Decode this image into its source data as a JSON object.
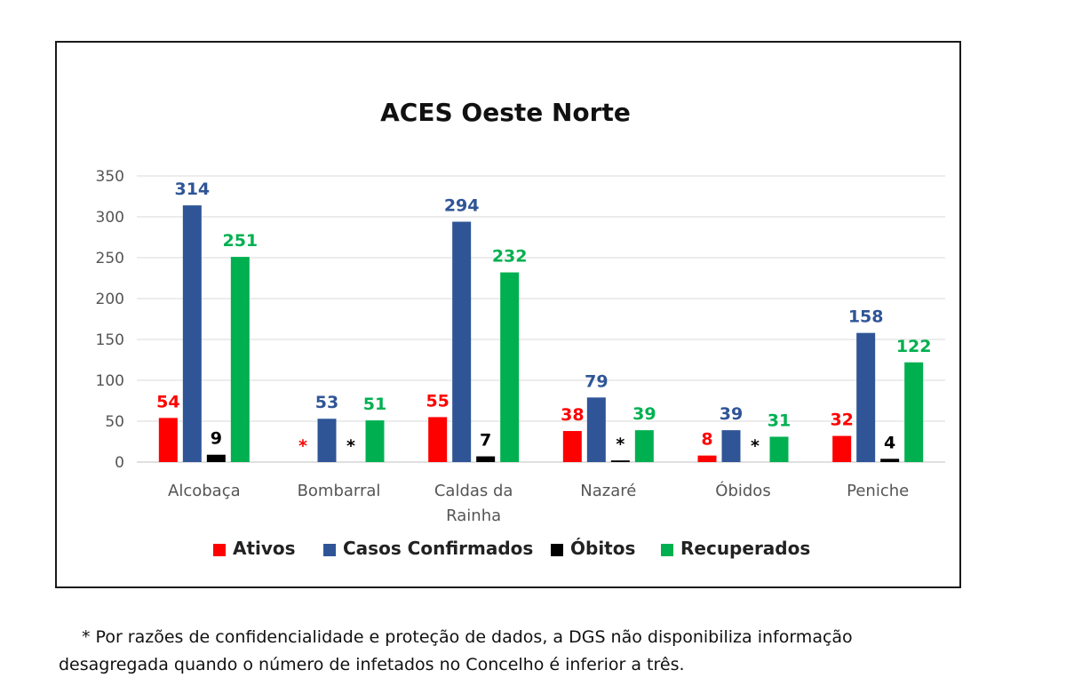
{
  "chart_data": {
    "type": "bar",
    "title": "ACES Oeste Norte",
    "categories": [
      [
        "Alcobaça"
      ],
      [
        "Bombarral"
      ],
      [
        "Caldas da",
        "Rainha"
      ],
      [
        "Nazaré"
      ],
      [
        "Óbidos"
      ],
      [
        "Peniche"
      ]
    ],
    "ylim": [
      0,
      350
    ],
    "yticks": [
      0,
      50,
      100,
      150,
      200,
      250,
      300,
      350
    ],
    "grid": true,
    "legend_position": "bottom",
    "series": [
      {
        "name": "Ativos",
        "color": "#ff0000",
        "values": [
          54,
          0,
          55,
          38,
          8,
          32
        ],
        "labels": [
          "54",
          "*",
          "55",
          "38",
          "8",
          "32"
        ]
      },
      {
        "name": "Casos Confirmados",
        "color": "#2f5597",
        "values": [
          314,
          53,
          294,
          79,
          39,
          158
        ],
        "labels": [
          "314",
          "53",
          "294",
          "79",
          "39",
          "158"
        ]
      },
      {
        "name": "Óbitos",
        "color": "#000000",
        "values": [
          9,
          0,
          7,
          2,
          0,
          4
        ],
        "labels": [
          "9",
          "*",
          "7",
          "*",
          "*",
          "4"
        ]
      },
      {
        "name": "Recuperados",
        "color": "#00b050",
        "values": [
          251,
          51,
          232,
          39,
          31,
          122
        ],
        "labels": [
          "251",
          "51",
          "232",
          "39",
          "31",
          "122"
        ]
      }
    ]
  },
  "footnote": {
    "line1": "* Por razões de confidencialidade e proteção de dados, a DGS não disponibiliza informação",
    "line2": "desagregada quando o número de infetados no Concelho é inferior a três."
  }
}
